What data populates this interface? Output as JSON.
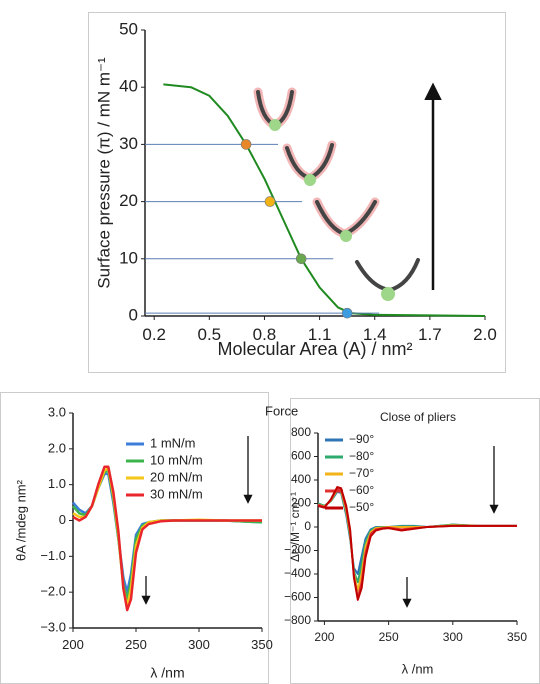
{
  "chart_data": [
    {
      "type": "line",
      "ylabel": "Surface pressure (π) / mN m⁻¹",
      "xlabel": "Molecular Area (A) / nm²",
      "xlim": [
        0.15,
        2.0
      ],
      "xticks": [
        0.2,
        0.5,
        0.8,
        1.1,
        1.4,
        1.7,
        {
          "value": 2,
          "label": "2.0"
        }
      ],
      "ylim": [
        0,
        50
      ],
      "yticks": [
        0,
        10,
        20,
        30,
        40,
        50
      ],
      "x": [
        0.25,
        0.4,
        0.5,
        0.6,
        0.7,
        0.8,
        0.9,
        1.0,
        1.1,
        1.2,
        1.27,
        1.4,
        1.7,
        2.0
      ],
      "series": [
        {
          "color": "#1f8a1f",
          "values": [
            40.5,
            40,
            38.5,
            35,
            30,
            24,
            17,
            10,
            5,
            1.5,
            0.5,
            0.2,
            0.1,
            0
          ]
        }
      ],
      "points": {
        "x": [
          0.7,
          0.83,
          1.0,
          1.25
        ],
        "y": [
          30,
          20,
          10,
          0.5
        ],
        "colors": [
          "#e8872a",
          "#f2b318",
          "#6aa84f",
          "#3d9be0"
        ]
      }
    },
    {
      "type": "line",
      "ylabel": "θA /mdeg nm²",
      "xlabel": "λ /nm",
      "legend_title": "Force",
      "xlim": [
        200,
        350
      ],
      "xticks": [
        200,
        250,
        300,
        350
      ],
      "ylim": [
        -3,
        3
      ],
      "yticks": [
        {
          "value": 3,
          "label": "3.0"
        },
        {
          "value": 2,
          "label": "2.0"
        },
        {
          "value": 1,
          "label": "1.0"
        },
        0,
        {
          "value": -1,
          "label": "−1.0"
        },
        {
          "value": -2,
          "label": "−2.0"
        },
        {
          "value": -3,
          "label": "−3.0"
        }
      ],
      "x": [
        200,
        205,
        210,
        215,
        220,
        225,
        228,
        232,
        236,
        240,
        243,
        246,
        250,
        255,
        260,
        270,
        280,
        300,
        320,
        350
      ],
      "series": [
        {
          "name": "1 mN/m",
          "color": "#3b7dd8",
          "values": [
            0.5,
            0.3,
            0.2,
            0.4,
            0.9,
            1.3,
            1.3,
            0.5,
            -0.5,
            -1.6,
            -2.0,
            -1.5,
            -0.4,
            -0.1,
            -0.05,
            0,
            0,
            0,
            0,
            -0.05
          ]
        },
        {
          "name": "10 mN/m",
          "color": "#3cb44b",
          "values": [
            0.4,
            0.2,
            0.15,
            0.4,
            0.9,
            1.35,
            1.4,
            0.6,
            -0.5,
            -1.8,
            -2.2,
            -1.7,
            -0.5,
            -0.15,
            -0.05,
            0,
            0,
            0,
            0,
            -0.05
          ]
        },
        {
          "name": "20 mN/m",
          "color": "#f5c518",
          "values": [
            0.2,
            0.1,
            0.1,
            0.4,
            0.9,
            1.4,
            1.45,
            0.7,
            -0.4,
            -1.9,
            -2.4,
            -1.9,
            -0.7,
            -0.2,
            -0.05,
            0,
            0,
            0.02,
            0,
            0
          ]
        },
        {
          "name": "30 mN/m",
          "color": "#e8262b",
          "values": [
            0.1,
            0,
            0.1,
            0.4,
            1.0,
            1.5,
            1.5,
            0.8,
            -0.3,
            -1.9,
            -2.5,
            -2.2,
            -0.9,
            -0.25,
            -0.1,
            -0.02,
            0,
            0,
            0,
            0
          ]
        }
      ]
    },
    {
      "type": "line",
      "ylabel": "Δε /M⁻¹ cm⁻¹",
      "xlabel": "λ /nm",
      "legend_title": "Close of pliers",
      "xlim": [
        195,
        350
      ],
      "xticks": [
        200,
        250,
        300,
        350
      ],
      "ylim": [
        -800,
        800
      ],
      "yticks": [
        800,
        600,
        400,
        200,
        0,
        {
          "value": -200,
          "label": "−200"
        },
        {
          "value": -400,
          "label": "−400"
        },
        {
          "value": -600,
          "label": "−600"
        },
        {
          "value": -800,
          "label": "−800"
        }
      ],
      "x": [
        195,
        200,
        205,
        210,
        213,
        217,
        220,
        223,
        226,
        229,
        232,
        236,
        240,
        245,
        250,
        260,
        270,
        280,
        300,
        320,
        350
      ],
      "series": [
        {
          "name": "−90°",
          "color": "#2e75b6",
          "values": [
            200,
            180,
            220,
            300,
            290,
            100,
            -100,
            -350,
            -400,
            -250,
            -100,
            -20,
            0,
            0,
            0,
            10,
            10,
            0,
            20,
            10,
            10
          ]
        },
        {
          "name": "−80°",
          "color": "#2eaa6e",
          "values": [
            200,
            180,
            220,
            310,
            300,
            120,
            -80,
            -380,
            -470,
            -320,
            -130,
            -30,
            -5,
            0,
            0,
            5,
            5,
            0,
            20,
            10,
            10
          ]
        },
        {
          "name": "−70°",
          "color": "#f2b318",
          "values": [
            190,
            175,
            225,
            320,
            310,
            140,
            -60,
            -400,
            -540,
            -400,
            -170,
            -45,
            -10,
            -5,
            0,
            0,
            0,
            0,
            15,
            10,
            10
          ]
        },
        {
          "name": "−60°",
          "color": "#e03030",
          "values": [
            190,
            170,
            230,
            330,
            320,
            160,
            -40,
            -420,
            -600,
            -470,
            -220,
            -60,
            -20,
            -10,
            -5,
            -20,
            -10,
            0,
            10,
            10,
            10
          ]
        },
        {
          "name": "−50°",
          "color": "#c00000",
          "values": [
            180,
            165,
            235,
            340,
            330,
            180,
            -20,
            -430,
            -620,
            -520,
            -260,
            -80,
            -30,
            -15,
            -10,
            -30,
            -15,
            0,
            10,
            10,
            10
          ]
        }
      ]
    }
  ]
}
